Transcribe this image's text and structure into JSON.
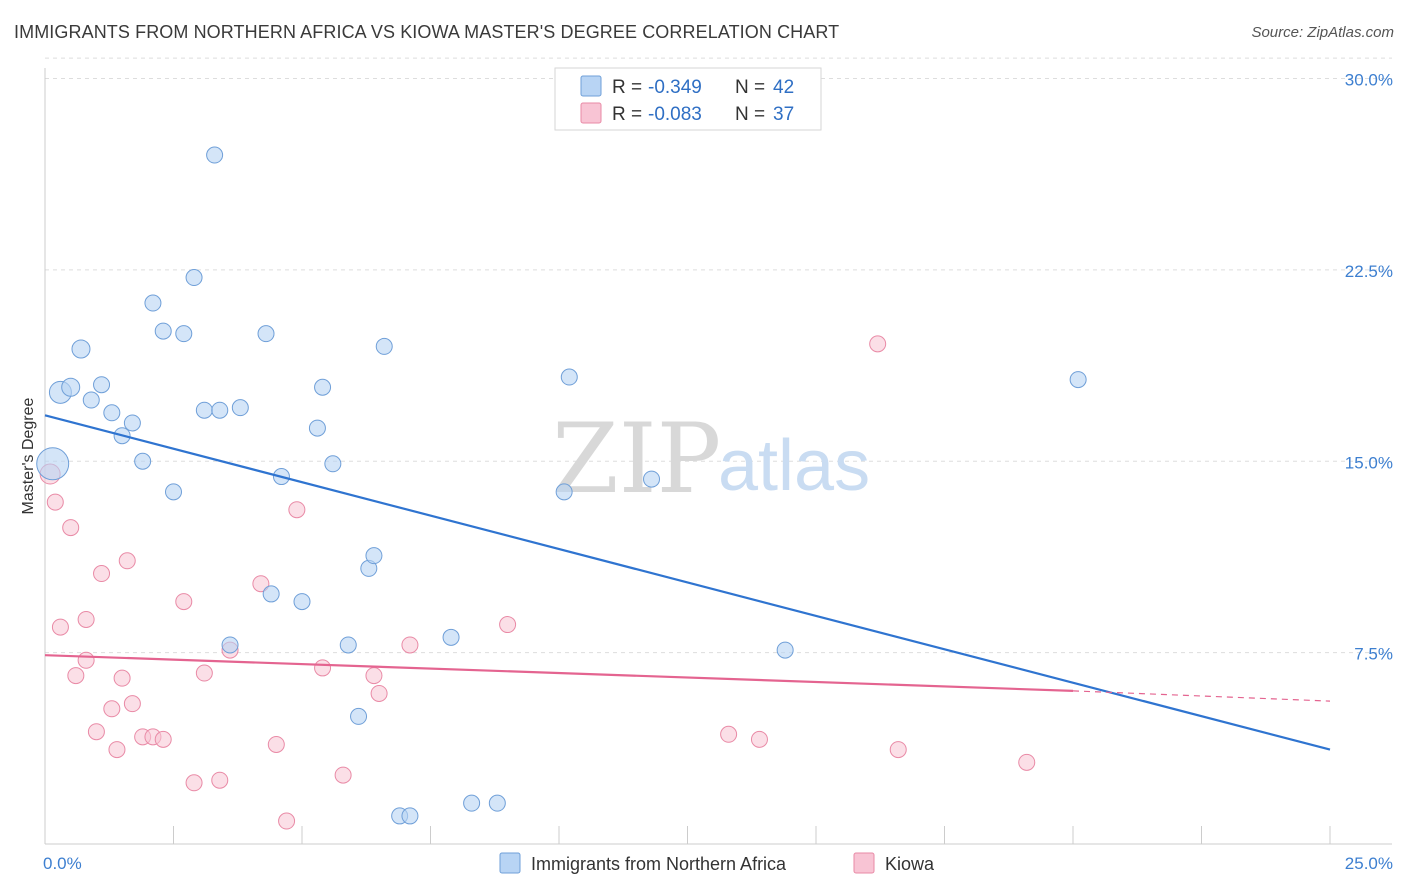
{
  "title": "IMMIGRANTS FROM NORTHERN AFRICA VS KIOWA MASTER'S DEGREE CORRELATION CHART",
  "source": "Source: ZipAtlas.com",
  "watermark": {
    "zip": "ZIP",
    "atlas": "atlas"
  },
  "colors": {
    "blue_fill": "#b8d4f4",
    "blue_stroke": "#6f9fd8",
    "blue_line": "#2f74d0",
    "pink_fill": "#f8c4d4",
    "pink_stroke": "#e98aa6",
    "pink_line": "#e46490",
    "grid": "#dddddd",
    "axis_text": "#3d7fd0"
  },
  "stats": {
    "blue": {
      "r_label": "R = ",
      "r_value": "-0.349",
      "n_label": "N = ",
      "n_value": "42"
    },
    "pink": {
      "r_label": "R = ",
      "r_value": "-0.083",
      "n_label": "N = ",
      "n_value": "37"
    }
  },
  "legend": {
    "blue": "Immigrants from Northern Africa",
    "pink": "Kiowa"
  },
  "chart_data": {
    "type": "scatter",
    "title": "IMMIGRANTS FROM NORTHERN AFRICA VS KIOWA MASTER'S DEGREE CORRELATION CHART",
    "xlabel": "",
    "ylabel": "Master's Degree",
    "xlim": [
      0,
      25
    ],
    "ylim": [
      0,
      30
    ],
    "x_tick_labels": [
      "0.0%",
      "25.0%"
    ],
    "y_ticks": [
      7.5,
      15.0,
      22.5,
      30.0
    ],
    "y_tick_labels": [
      "7.5%",
      "15.0%",
      "22.5%",
      "30.0%"
    ],
    "grid": true,
    "legend_position": "bottom",
    "series": [
      {
        "name": "Immigrants from Northern Africa",
        "color": "#b8d4f4",
        "points": [
          [
            0.15,
            14.9,
            16
          ],
          [
            0.3,
            17.7,
            11
          ],
          [
            0.5,
            17.9,
            9
          ],
          [
            0.7,
            19.4,
            9
          ],
          [
            0.9,
            17.4,
            8
          ],
          [
            1.1,
            18.0,
            8
          ],
          [
            1.3,
            16.9,
            8
          ],
          [
            1.5,
            16.0,
            8
          ],
          [
            1.7,
            16.5,
            8
          ],
          [
            1.9,
            15.0,
            8
          ],
          [
            2.1,
            21.2,
            8
          ],
          [
            2.3,
            20.1,
            8
          ],
          [
            2.5,
            13.8,
            8
          ],
          [
            2.7,
            20.0,
            8
          ],
          [
            2.9,
            22.2,
            8
          ],
          [
            3.1,
            17.0,
            8
          ],
          [
            3.3,
            27.0,
            8
          ],
          [
            3.4,
            17.0,
            8
          ],
          [
            3.8,
            17.1,
            8
          ],
          [
            3.6,
            7.8,
            8
          ],
          [
            4.3,
            20.0,
            8
          ],
          [
            4.4,
            9.8,
            8
          ],
          [
            4.6,
            14.4,
            8
          ],
          [
            5.0,
            9.5,
            8
          ],
          [
            5.3,
            16.3,
            8
          ],
          [
            5.4,
            17.9,
            8
          ],
          [
            5.6,
            14.9,
            8
          ],
          [
            5.9,
            7.8,
            8
          ],
          [
            6.1,
            5.0,
            8
          ],
          [
            6.3,
            10.8,
            8
          ],
          [
            6.4,
            11.3,
            8
          ],
          [
            6.6,
            19.5,
            8
          ],
          [
            6.9,
            1.1,
            8
          ],
          [
            7.1,
            1.1,
            8
          ],
          [
            7.9,
            8.1,
            8
          ],
          [
            8.3,
            1.6,
            8
          ],
          [
            8.8,
            1.6,
            8
          ],
          [
            10.1,
            13.8,
            8
          ],
          [
            10.2,
            18.3,
            8
          ],
          [
            11.8,
            14.3,
            8
          ],
          [
            14.4,
            7.6,
            8
          ],
          [
            20.1,
            18.2,
            8
          ]
        ],
        "trend": {
          "x": [
            0,
            25
          ],
          "y": [
            16.8,
            3.7
          ]
        }
      },
      {
        "name": "Kiowa",
        "color": "#f8c4d4",
        "points": [
          [
            0.1,
            14.5,
            10
          ],
          [
            0.2,
            13.4,
            8
          ],
          [
            0.3,
            8.5,
            8
          ],
          [
            0.5,
            12.4,
            8
          ],
          [
            0.6,
            6.6,
            8
          ],
          [
            0.8,
            7.2,
            8
          ],
          [
            0.8,
            8.8,
            8
          ],
          [
            1.0,
            4.4,
            8
          ],
          [
            1.1,
            10.6,
            8
          ],
          [
            1.3,
            5.3,
            8
          ],
          [
            1.4,
            3.7,
            8
          ],
          [
            1.5,
            6.5,
            8
          ],
          [
            1.6,
            11.1,
            8
          ],
          [
            1.7,
            5.5,
            8
          ],
          [
            1.9,
            4.2,
            8
          ],
          [
            2.1,
            4.2,
            8
          ],
          [
            2.3,
            4.1,
            8
          ],
          [
            2.7,
            9.5,
            8
          ],
          [
            2.9,
            2.4,
            8
          ],
          [
            3.1,
            6.7,
            8
          ],
          [
            3.4,
            2.5,
            8
          ],
          [
            3.6,
            7.6,
            8
          ],
          [
            4.2,
            10.2,
            8
          ],
          [
            4.5,
            3.9,
            8
          ],
          [
            4.7,
            0.9,
            8
          ],
          [
            4.9,
            13.1,
            8
          ],
          [
            5.4,
            6.9,
            8
          ],
          [
            5.8,
            2.7,
            8
          ],
          [
            6.4,
            6.6,
            8
          ],
          [
            6.5,
            5.9,
            8
          ],
          [
            7.1,
            7.8,
            8
          ],
          [
            9.0,
            8.6,
            8
          ],
          [
            13.3,
            4.3,
            8
          ],
          [
            13.9,
            4.1,
            8
          ],
          [
            16.2,
            19.6,
            8
          ],
          [
            16.6,
            3.7,
            8
          ],
          [
            19.1,
            3.2,
            8
          ]
        ],
        "trend": {
          "x": [
            0,
            20
          ],
          "y": [
            7.4,
            6.0
          ],
          "dashed_extension": {
            "x": [
              20,
              25
            ],
            "y": [
              6.0,
              5.6
            ]
          }
        }
      }
    ]
  }
}
